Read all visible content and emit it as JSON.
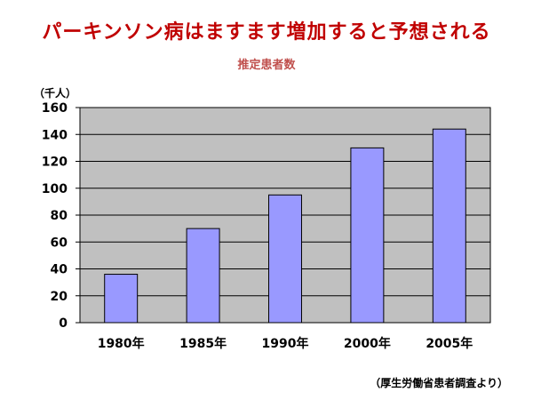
{
  "title": "パーキンソン病はますます増加すると予想される",
  "subtitle": "推定患者数",
  "unit_label": "（千人）",
  "source_note": "（厚生労働省患者調査より）",
  "colors": {
    "title": "#c00000",
    "subtitle": "#c0504d",
    "plot_background": "#c0c0c0",
    "bar_fill": "#9999ff",
    "bar_stroke": "#000000"
  },
  "chart_data": {
    "type": "bar",
    "categories": [
      "1980年",
      "1985年",
      "1990年",
      "2000年",
      "2005年"
    ],
    "values": [
      36,
      70,
      95,
      130,
      144
    ],
    "ylim": [
      0,
      160
    ],
    "yticks": [
      0,
      20,
      40,
      60,
      80,
      100,
      120,
      140,
      160
    ],
    "grid": true,
    "legend": "none"
  }
}
